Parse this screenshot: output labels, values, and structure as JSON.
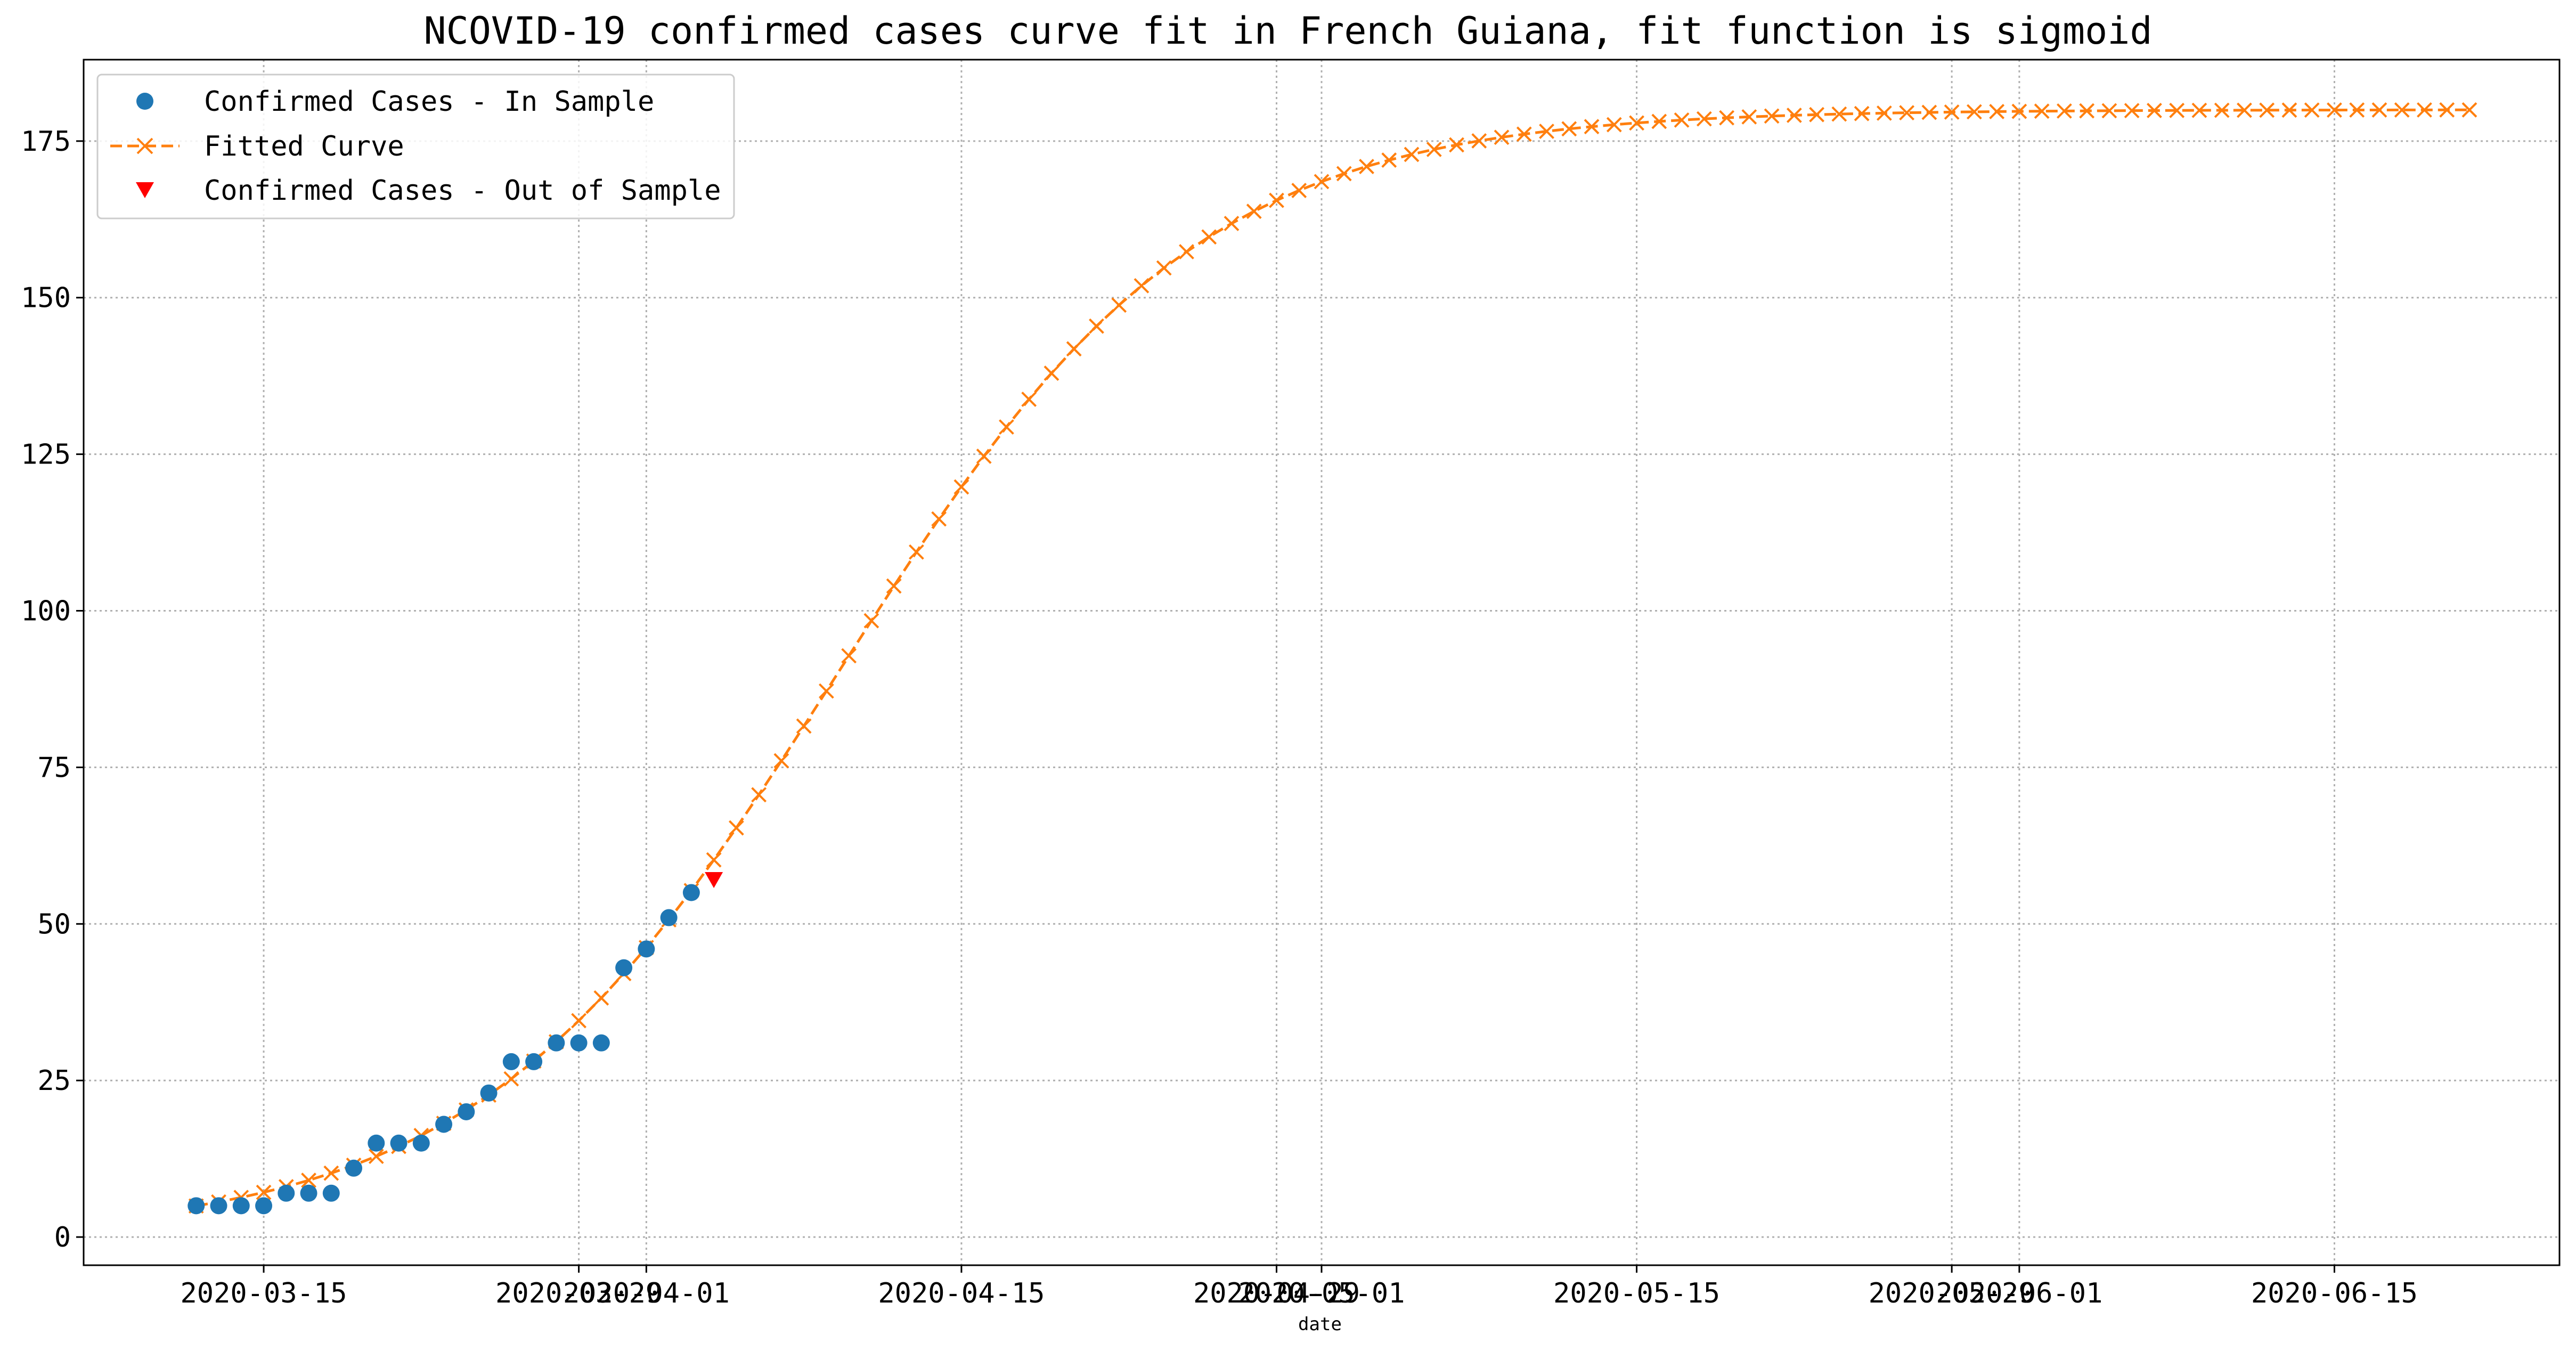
{
  "chart_data": {
    "type": "line",
    "title": "NCOVID-19 confirmed cases curve fit in French Guiana, fit function is sigmoid",
    "xlabel": "date",
    "ylabel": "",
    "x_range": [
      "2020-03-07",
      "2020-06-25"
    ],
    "ylim": [
      -4.5,
      188
    ],
    "yticks": [
      0,
      25,
      50,
      75,
      100,
      125,
      150,
      175
    ],
    "xticks": [
      "2020-03-15",
      "2020-03-29",
      "2020-04-01",
      "2020-04-15",
      "2020-04-29",
      "2020-05-01",
      "2020-05-15",
      "2020-05-29",
      "2020-06-01",
      "2020-06-15"
    ],
    "grid": true,
    "legend_position": "top-left",
    "series": [
      {
        "name": "Confirmed Cases - In Sample",
        "marker": "circle",
        "color": "#1f77b4",
        "start_date": "2020-03-12",
        "values": [
          5,
          5,
          5,
          5,
          7,
          7,
          7,
          11,
          15,
          15,
          15,
          18,
          20,
          23,
          28,
          28,
          31,
          31,
          31,
          43,
          46,
          51,
          55
        ]
      },
      {
        "name": "Fitted Curve",
        "marker": "x",
        "line": "dashed",
        "color": "#ff7f0e",
        "start_date": "2020-03-12",
        "end_date": "2020-06-21",
        "sigmoid": {
          "L": 180,
          "k": 0.125,
          "t0": 28.5
        }
      },
      {
        "name": "Confirmed Cases - Out of Sample",
        "marker": "triangle-down",
        "color": "#ff0000",
        "points": [
          {
            "x": "2020-04-04",
            "y": 57
          }
        ]
      }
    ]
  }
}
